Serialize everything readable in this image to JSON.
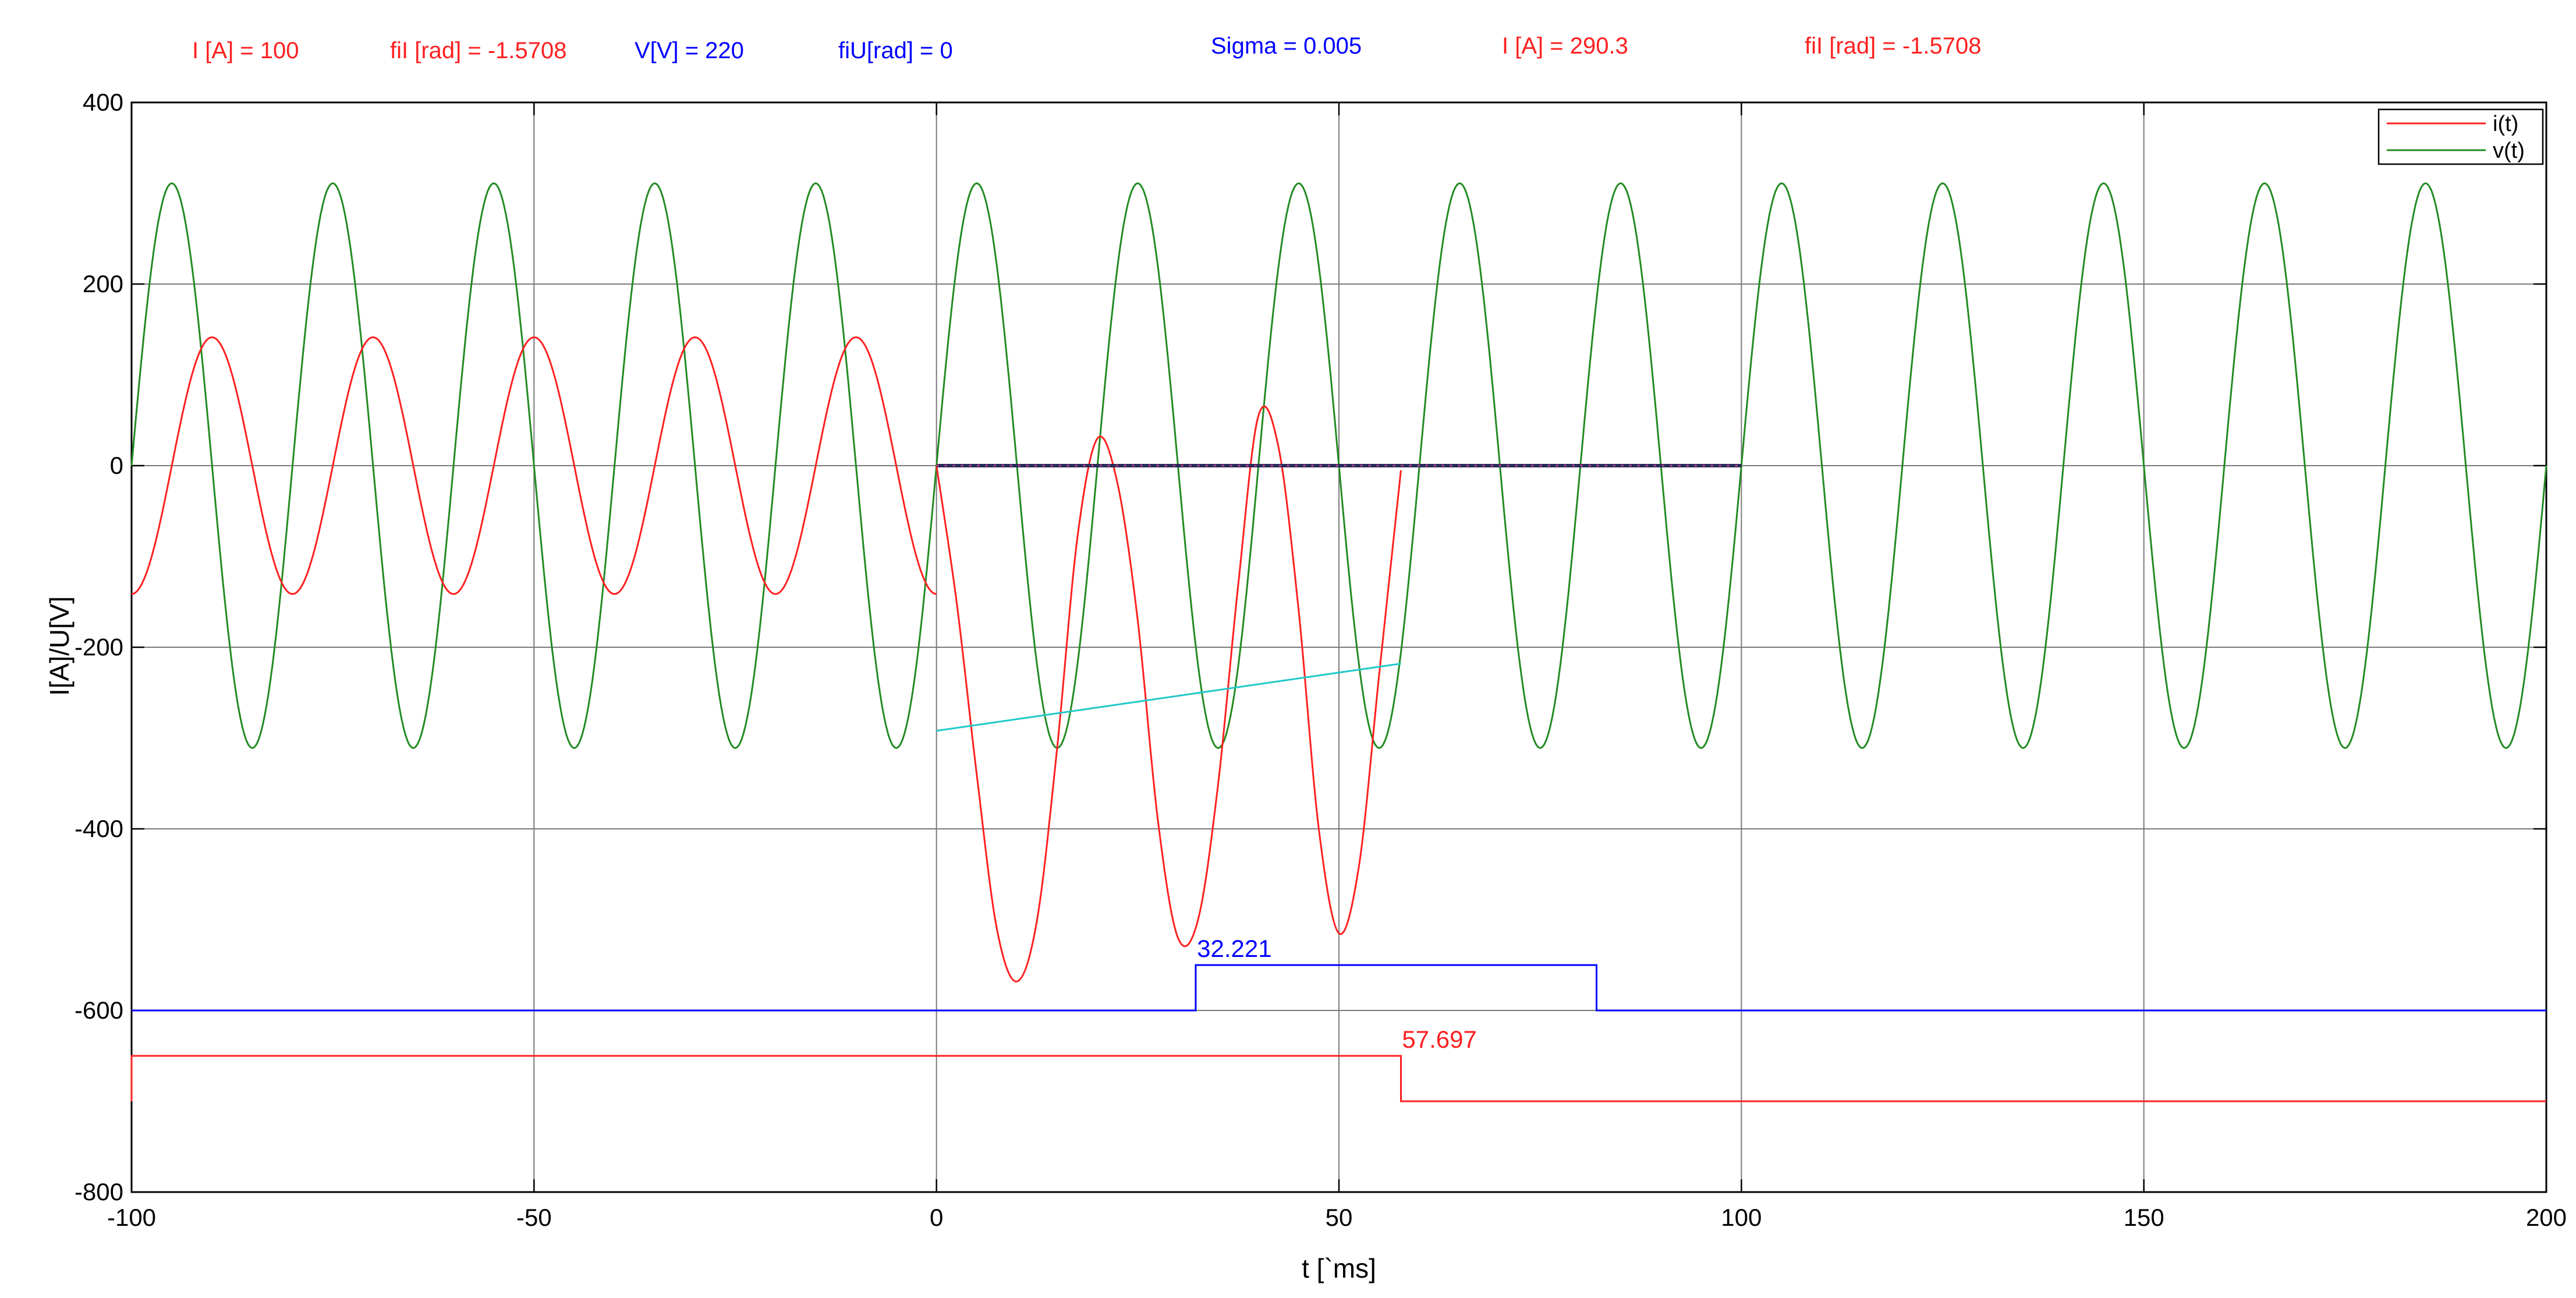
{
  "colors": {
    "current": "#ff2020",
    "voltage": "#228b22",
    "blue": "#0000ff",
    "cyan": "#20c8c8",
    "grid": "#7a7a7a"
  },
  "header": {
    "i_amp": "I [A] = 100",
    "phi_i": "fiI [rad] = -1.5708",
    "v_volt": "V[V]  =  220",
    "phi_u": "fiU[rad] = 0",
    "sigma": "Sigma =  0.005",
    "i_amp2": "I [A] =   290.3",
    "phi_i2": "fiI [rad]  =  -1.5708"
  },
  "chart_data": {
    "type": "line",
    "xlabel": "t [`ms]",
    "ylabel": "I[A]/U[V]",
    "xlim": [
      -100,
      200
    ],
    "ylim": [
      -800,
      400
    ],
    "x_ticks": [
      -100,
      -50,
      0,
      50,
      100,
      150,
      200
    ],
    "y_ticks": [
      400,
      200,
      0,
      -200,
      -400,
      -600,
      -800
    ],
    "x_tick_labels": [
      "-100",
      "-50",
      "0",
      "50",
      "100",
      "150",
      "200"
    ],
    "y_tick_labels": [
      "400",
      "200",
      "0",
      "-200",
      "-400",
      "-600",
      "-800"
    ],
    "grid": true,
    "legend_position": "top-right",
    "legend": [
      "i(t)",
      "v(t)"
    ],
    "series": [
      {
        "name": "v(t)",
        "kind": "sine",
        "amplitude": 311,
        "frequency_hz": 50,
        "phase_rad": 0,
        "x_range": [
          -100,
          200
        ]
      },
      {
        "name": "i(t)",
        "kind": "sine",
        "amplitude": 141.4,
        "frequency_hz": 50,
        "phase_rad": -1.5708,
        "x_range": [
          -100,
          0
        ]
      },
      {
        "kind": "transient",
        "x_range": [
          0,
          57.7
        ],
        "points": [
          [
            0,
            0
          ],
          [
            2.5,
            -150
          ],
          [
            5,
            -340
          ],
          [
            7.5,
            -510
          ],
          [
            10,
            -568
          ],
          [
            12.5,
            -500
          ],
          [
            15,
            -310
          ],
          [
            17.5,
            -80
          ],
          [
            20,
            30
          ],
          [
            22.5,
            -20
          ],
          [
            25,
            -170
          ],
          [
            27.5,
            -390
          ],
          [
            30,
            -520
          ],
          [
            32.5,
            -500
          ],
          [
            35,
            -350
          ],
          [
            37.5,
            -130
          ],
          [
            40,
            55
          ],
          [
            42.5,
            20
          ],
          [
            45,
            -160
          ],
          [
            47.5,
            -400
          ],
          [
            50,
            -515
          ],
          [
            52.5,
            -440
          ],
          [
            55,
            -230
          ],
          [
            57.7,
            -5
          ]
        ]
      },
      {
        "kind": "cyan-line",
        "points": [
          [
            0,
            -292
          ],
          [
            57.7,
            -218
          ]
        ]
      },
      {
        "kind": "blue-step",
        "points": [
          [
            -100,
            -600
          ],
          [
            32.2,
            -600
          ],
          [
            32.2,
            -550
          ],
          [
            82,
            -550
          ],
          [
            82,
            -600
          ],
          [
            200,
            -600
          ]
        ]
      },
      {
        "kind": "red-step",
        "points": [
          [
            -100,
            -700
          ],
          [
            -100,
            -650
          ],
          [
            57.7,
            -650
          ],
          [
            57.7,
            -700
          ],
          [
            200,
            -700
          ]
        ]
      },
      {
        "kind": "zero-line",
        "points": [
          [
            0,
            0
          ],
          [
            100,
            0
          ]
        ]
      }
    ],
    "annotations": [
      {
        "text": "32.221",
        "x": 32.221,
        "y": -550
      },
      {
        "text": "57.697",
        "x": 57.697,
        "y": -650
      }
    ]
  }
}
